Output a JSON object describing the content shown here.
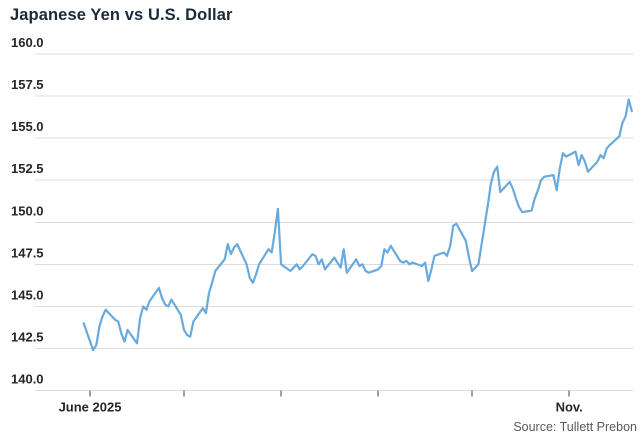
{
  "header": {
    "title": "Japanese Yen vs U.S. Dollar"
  },
  "footer": {
    "source": "Source: Tullett Prebon"
  },
  "chart_data": {
    "type": "line",
    "title": "Japanese Yen vs U.S. Dollar",
    "legend": "none",
    "grid": "horizontal",
    "ylim": [
      140.0,
      160.0
    ],
    "y_ticks": [
      160.0,
      157.5,
      155.0,
      152.5,
      150.0,
      147.5,
      145.0,
      142.5,
      140.0
    ],
    "x_ticks": [
      {
        "date": "2025-06-01",
        "label": "June 2025"
      },
      {
        "date": "2025-07-01",
        "label": ""
      },
      {
        "date": "2025-08-01",
        "label": ""
      },
      {
        "date": "2025-09-01",
        "label": ""
      },
      {
        "date": "2025-10-01",
        "label": ""
      },
      {
        "date": "2025-11-01",
        "label": "Nov."
      }
    ],
    "line_color": "#69aadc",
    "grid_color": "#dcdcdc",
    "tick_color": "#444444",
    "label_color": "#262626",
    "title_color": "#1b2a3a",
    "series": [
      {
        "name": "Japanese yen per U.S. dollar",
        "points": [
          [
            "2025-05-30",
            144.0
          ],
          [
            "2025-06-02",
            142.4
          ],
          [
            "2025-06-03",
            142.7
          ],
          [
            "2025-06-04",
            143.8
          ],
          [
            "2025-06-05",
            144.4
          ],
          [
            "2025-06-06",
            144.8
          ],
          [
            "2025-06-09",
            144.2
          ],
          [
            "2025-06-10",
            144.1
          ],
          [
            "2025-06-11",
            143.4
          ],
          [
            "2025-06-12",
            142.9
          ],
          [
            "2025-06-13",
            143.6
          ],
          [
            "2025-06-16",
            142.8
          ],
          [
            "2025-06-17",
            144.3
          ],
          [
            "2025-06-18",
            145.0
          ],
          [
            "2025-06-19",
            144.8
          ],
          [
            "2025-06-20",
            145.3
          ],
          [
            "2025-06-23",
            146.1
          ],
          [
            "2025-06-24",
            145.5
          ],
          [
            "2025-06-25",
            145.1
          ],
          [
            "2025-06-26",
            145.0
          ],
          [
            "2025-06-27",
            145.4
          ],
          [
            "2025-06-30",
            144.5
          ],
          [
            "2025-07-01",
            143.6
          ],
          [
            "2025-07-02",
            143.3
          ],
          [
            "2025-07-03",
            143.2
          ],
          [
            "2025-07-04",
            144.1
          ],
          [
            "2025-07-07",
            144.9
          ],
          [
            "2025-07-08",
            144.6
          ],
          [
            "2025-07-09",
            145.8
          ],
          [
            "2025-07-10",
            146.4
          ],
          [
            "2025-07-11",
            147.1
          ],
          [
            "2025-07-14",
            147.8
          ],
          [
            "2025-07-15",
            148.7
          ],
          [
            "2025-07-16",
            148.1
          ],
          [
            "2025-07-17",
            148.5
          ],
          [
            "2025-07-18",
            148.7
          ],
          [
            "2025-07-21",
            147.5
          ],
          [
            "2025-07-22",
            146.7
          ],
          [
            "2025-07-23",
            146.4
          ],
          [
            "2025-07-24",
            146.9
          ],
          [
            "2025-07-25",
            147.5
          ],
          [
            "2025-07-28",
            148.4
          ],
          [
            "2025-07-29",
            148.2
          ],
          [
            "2025-07-30",
            149.4
          ],
          [
            "2025-07-31",
            150.8
          ],
          [
            "2025-08-01",
            147.5
          ],
          [
            "2025-08-04",
            147.1
          ],
          [
            "2025-08-05",
            147.3
          ],
          [
            "2025-08-06",
            147.5
          ],
          [
            "2025-08-07",
            147.2
          ],
          [
            "2025-08-08",
            147.4
          ],
          [
            "2025-08-11",
            148.1
          ],
          [
            "2025-08-12",
            148.0
          ],
          [
            "2025-08-13",
            147.5
          ],
          [
            "2025-08-14",
            147.8
          ],
          [
            "2025-08-15",
            147.2
          ],
          [
            "2025-08-18",
            147.9
          ],
          [
            "2025-08-19",
            147.6
          ],
          [
            "2025-08-20",
            147.3
          ],
          [
            "2025-08-21",
            148.4
          ],
          [
            "2025-08-22",
            147.0
          ],
          [
            "2025-08-25",
            147.8
          ],
          [
            "2025-08-26",
            147.4
          ],
          [
            "2025-08-27",
            147.5
          ],
          [
            "2025-08-28",
            147.1
          ],
          [
            "2025-08-29",
            147.0
          ],
          [
            "2025-09-01",
            147.2
          ],
          [
            "2025-09-02",
            147.4
          ],
          [
            "2025-09-03",
            148.4
          ],
          [
            "2025-09-04",
            148.2
          ],
          [
            "2025-09-05",
            148.6
          ],
          [
            "2025-09-08",
            147.7
          ],
          [
            "2025-09-09",
            147.6
          ],
          [
            "2025-09-10",
            147.7
          ],
          [
            "2025-09-11",
            147.5
          ],
          [
            "2025-09-12",
            147.6
          ],
          [
            "2025-09-15",
            147.4
          ],
          [
            "2025-09-16",
            147.6
          ],
          [
            "2025-09-17",
            146.5
          ],
          [
            "2025-09-18",
            147.2
          ],
          [
            "2025-09-19",
            148.0
          ],
          [
            "2025-09-22",
            148.2
          ],
          [
            "2025-09-23",
            148.0
          ],
          [
            "2025-09-24",
            148.6
          ],
          [
            "2025-09-25",
            149.8
          ],
          [
            "2025-09-26",
            149.9
          ],
          [
            "2025-09-29",
            148.9
          ],
          [
            "2025-09-30",
            147.9
          ],
          [
            "2025-10-01",
            147.1
          ],
          [
            "2025-10-02",
            147.3
          ],
          [
            "2025-10-03",
            147.5
          ],
          [
            "2025-10-06",
            151.0
          ],
          [
            "2025-10-07",
            152.3
          ],
          [
            "2025-10-08",
            153.0
          ],
          [
            "2025-10-09",
            153.3
          ],
          [
            "2025-10-10",
            151.8
          ],
          [
            "2025-10-13",
            152.4
          ],
          [
            "2025-10-14",
            152.0
          ],
          [
            "2025-10-15",
            151.4
          ],
          [
            "2025-10-16",
            150.9
          ],
          [
            "2025-10-17",
            150.6
          ],
          [
            "2025-10-20",
            150.7
          ],
          [
            "2025-10-21",
            151.4
          ],
          [
            "2025-10-22",
            151.9
          ],
          [
            "2025-10-23",
            152.5
          ],
          [
            "2025-10-24",
            152.7
          ],
          [
            "2025-10-27",
            152.8
          ],
          [
            "2025-10-28",
            151.9
          ],
          [
            "2025-10-29",
            153.2
          ],
          [
            "2025-10-30",
            154.1
          ],
          [
            "2025-10-31",
            153.9
          ],
          [
            "2025-11-03",
            154.2
          ],
          [
            "2025-11-04",
            153.4
          ],
          [
            "2025-11-05",
            154.0
          ],
          [
            "2025-11-06",
            153.6
          ],
          [
            "2025-11-07",
            153.0
          ],
          [
            "2025-11-10",
            153.6
          ],
          [
            "2025-11-11",
            154.0
          ],
          [
            "2025-11-12",
            153.8
          ],
          [
            "2025-11-13",
            154.4
          ],
          [
            "2025-11-14",
            154.6
          ],
          [
            "2025-11-17",
            155.1
          ],
          [
            "2025-11-18",
            155.9
          ],
          [
            "2025-11-19",
            156.3
          ],
          [
            "2025-11-20",
            157.3
          ],
          [
            "2025-11-21",
            156.6
          ]
        ]
      }
    ]
  }
}
